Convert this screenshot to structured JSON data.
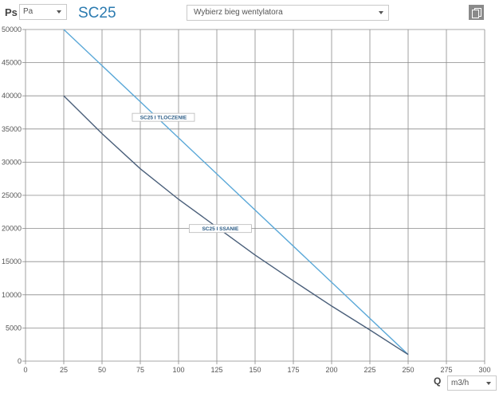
{
  "header": {
    "y_symbol": "Ps",
    "unit_select": {
      "value": "Pa"
    },
    "title": "SC25",
    "fan_select": {
      "placeholder": "Wybierz bieg wentylatora"
    },
    "copy_icon": "copy-icon"
  },
  "footer": {
    "x_symbol": "Q",
    "unit_select": {
      "value": "m3/h"
    }
  },
  "colors": {
    "grid": "#8a8a8a",
    "tloczenie": "#5aa8d8",
    "ssanie": "#4a5f7a",
    "label_text": "#2b5c86",
    "title": "#2c7bb0"
  },
  "chart_data": {
    "type": "line",
    "x_ticks": [
      0,
      25,
      50,
      75,
      100,
      125,
      150,
      175,
      200,
      225,
      250,
      275,
      300
    ],
    "y_ticks": [
      0,
      5000,
      10000,
      15000,
      20000,
      25000,
      30000,
      35000,
      40000,
      45000,
      50000
    ],
    "xlim": [
      0,
      300
    ],
    "ylim": [
      0,
      50000
    ],
    "grid": true,
    "series": [
      {
        "name": "SC25 I TLOCZENIE",
        "x": [
          25,
          250
        ],
        "y": [
          50000,
          1000
        ],
        "color": "#5aa8d8"
      },
      {
        "name": "SC25 I SSANIE",
        "x": [
          25,
          50,
          75,
          100,
          125,
          150,
          175,
          200,
          225,
          250
        ],
        "y": [
          40000,
          34300,
          29000,
          24400,
          20200,
          16000,
          12100,
          8300,
          4700,
          1000
        ],
        "color": "#4a5f7a"
      }
    ]
  }
}
